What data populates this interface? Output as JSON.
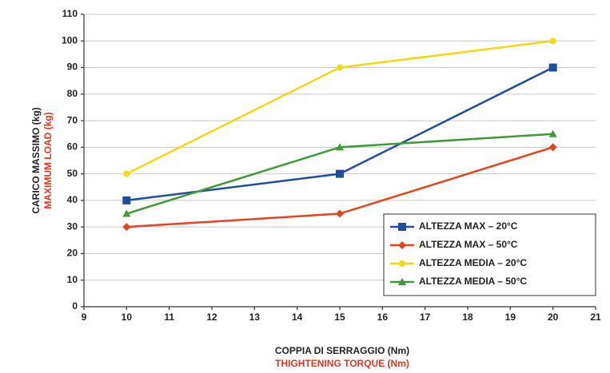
{
  "chart_data": {
    "type": "line",
    "xlabel": "COPPIA DI SERRAGGIO (Nm)",
    "xlabel_en": "THIGHTENING TORQUE (Nm)",
    "ylabel": "CARICO MASSIMO (kg)",
    "ylabel_en": "MAXIMUM LOAD (kg)",
    "x": [
      10,
      15,
      20
    ],
    "series": [
      {
        "name": "ALTEZZA MAX – 20°C",
        "color": "#1f4e9e",
        "marker": "square",
        "values": [
          40,
          50,
          90
        ]
      },
      {
        "name": "ALTEZZA MAX – 50°C",
        "color": "#e8421c",
        "marker": "diamond",
        "values": [
          30,
          35,
          60
        ]
      },
      {
        "name": "ALTEZZA MEDIA – 20°C",
        "color": "#f5d90f",
        "marker": "circle",
        "values": [
          50,
          90,
          100
        ]
      },
      {
        "name": "ALTEZZA MEDIA – 50°C",
        "color": "#3e9a36",
        "marker": "triangle",
        "values": [
          35,
          60,
          65
        ]
      }
    ],
    "xlim": [
      9,
      21
    ],
    "xticks": [
      9,
      10,
      11,
      12,
      13,
      14,
      15,
      16,
      17,
      18,
      19,
      20,
      21
    ],
    "ylim": [
      0,
      110
    ],
    "yticks": [
      0,
      10,
      20,
      30,
      40,
      50,
      60,
      70,
      80,
      90,
      100,
      110
    ],
    "grid": true,
    "legend": "lower right"
  }
}
